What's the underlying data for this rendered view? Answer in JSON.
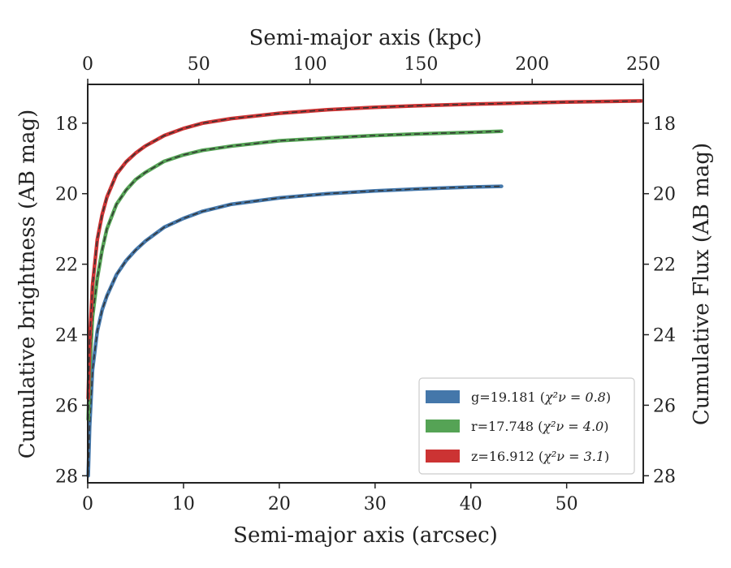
{
  "chart_data": {
    "type": "line",
    "x_bottom": {
      "label": "Semi-major axis (arcsec)",
      "range": [
        0,
        58
      ],
      "ticks": [
        0,
        10,
        20,
        30,
        40,
        50
      ]
    },
    "x_top": {
      "label": "Semi-major axis (kpc)",
      "range": [
        0,
        250
      ],
      "ticks": [
        0,
        50,
        100,
        150,
        200,
        250
      ]
    },
    "y_left": {
      "label": "Cumulative brightness (AB mag)",
      "range": [
        28.2,
        16.9
      ],
      "inverted": true,
      "ticks": [
        18,
        20,
        22,
        24,
        26,
        28
      ]
    },
    "y_right": {
      "label": "Cumulative Flux (AB mag)",
      "range": [
        28.2,
        16.9
      ],
      "inverted": true,
      "ticks": [
        18,
        20,
        22,
        24,
        26,
        28
      ]
    },
    "legend": {
      "placement": "lower-right"
    },
    "series": [
      {
        "name": "g=19.181",
        "chi_label": "χ²ν = 0.8",
        "color": "#4477aa",
        "x": [
          0.05,
          0.2,
          0.5,
          1,
          1.5,
          2,
          3,
          4,
          5,
          6,
          8,
          10,
          12,
          15,
          20,
          25,
          30,
          35,
          40,
          43.2
        ],
        "y": [
          28.0,
          26.6,
          25.0,
          23.9,
          23.3,
          22.9,
          22.3,
          21.9,
          21.6,
          21.35,
          20.95,
          20.7,
          20.5,
          20.3,
          20.12,
          20.0,
          19.92,
          19.86,
          19.81,
          19.79
        ]
      },
      {
        "name": "r=17.748",
        "chi_label": "χ²ν = 4.0",
        "color": "#55a355",
        "x": [
          0.05,
          0.2,
          0.5,
          1,
          1.5,
          2,
          3,
          4,
          5,
          6,
          8,
          10,
          12,
          15,
          20,
          25,
          30,
          35,
          40,
          43.2
        ],
        "y": [
          26.4,
          25.0,
          23.5,
          22.4,
          21.6,
          21.0,
          20.3,
          19.9,
          19.6,
          19.4,
          19.08,
          18.9,
          18.77,
          18.65,
          18.5,
          18.42,
          18.35,
          18.3,
          18.26,
          18.23
        ]
      },
      {
        "name": "z=16.912",
        "chi_label": "χ²ν = 3.1",
        "color": "#cc3333",
        "x": [
          0.05,
          0.2,
          0.5,
          1,
          1.5,
          2,
          3,
          4,
          5,
          6,
          8,
          10,
          12,
          15,
          20,
          25,
          30,
          35,
          40,
          45,
          50,
          55,
          57.8
        ],
        "y": [
          25.8,
          24.2,
          22.6,
          21.3,
          20.6,
          20.1,
          19.45,
          19.1,
          18.85,
          18.65,
          18.35,
          18.15,
          18.0,
          17.87,
          17.72,
          17.62,
          17.55,
          17.5,
          17.46,
          17.43,
          17.4,
          17.38,
          17.37
        ]
      }
    ],
    "grid": false
  }
}
